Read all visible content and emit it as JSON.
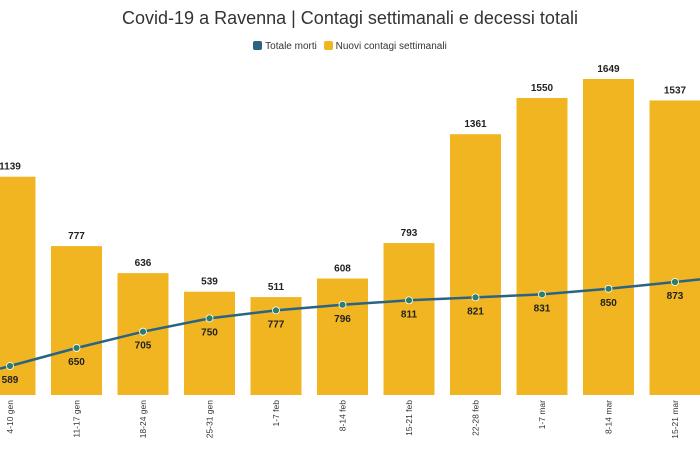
{
  "chart_data": {
    "type": "bar",
    "title": "Covid-19 a Ravenna | Contagi settimanali e decessi totali",
    "categories": [
      "4-10 gen",
      "11-17 gen",
      "18-24 gen",
      "25-31 gen",
      "1-7 feb",
      "8-14 feb",
      "15-21 feb",
      "22-28 feb",
      "1-7 mar",
      "8-14 mar",
      "15-21 mar"
    ],
    "series": [
      {
        "name": "Nuovi contagi settimanali",
        "type": "bar",
        "color": "#F0B521",
        "values": [
          1139,
          777,
          636,
          539,
          511,
          608,
          793,
          1361,
          1550,
          1649,
          1537
        ]
      },
      {
        "name": "Totale morti",
        "type": "line",
        "color": "#2A6384",
        "values": [
          589,
          650,
          705,
          750,
          777,
          796,
          811,
          821,
          831,
          850,
          873
        ]
      }
    ],
    "legend": [
      {
        "label": "Totale morti",
        "color": "#2A6384"
      },
      {
        "label": "Nuovi contagi settimanali",
        "color": "#F0B521"
      }
    ],
    "legend_position": "top",
    "grid": false,
    "ylim_bars": [
      0,
      1649
    ],
    "ylim_line": [
      589,
      873
    ]
  }
}
